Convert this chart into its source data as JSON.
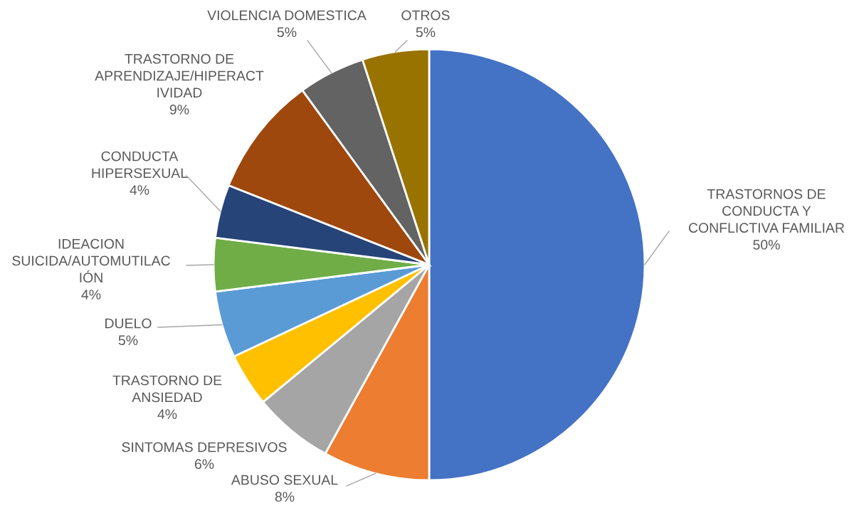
{
  "chart_data": {
    "type": "pie",
    "categories": [
      "TRASTORNOS DE\nCONDUCTA Y\nCONFLICTIVA FAMILIAR",
      "ABUSO SEXUAL",
      "SINTOMAS DEPRESIVOS",
      "TRASTORNO DE\nANSIEDAD",
      "DUELO",
      "IDEACION\nSUICIDA/AUTOMUTILAC\nIÓN",
      "CONDUCTA\nHIPERSEXUAL",
      "TRASTORNO DE\nAPRENDIZAJE/HIPERACT\nIVIDAD",
      "VIOLENCIA DOMESTICA",
      "OTROS"
    ],
    "values": [
      50,
      8,
      6,
      4,
      5,
      4,
      4,
      9,
      5,
      5
    ],
    "value_labels": [
      "50%",
      "8%",
      "6%",
      "4%",
      "5%",
      "4%",
      "4%",
      "9%",
      "5%",
      "5%"
    ],
    "colors": [
      "#4472c4",
      "#ed7d31",
      "#a5a5a5",
      "#ffc000",
      "#5b9bd5",
      "#70ad47",
      "#264478",
      "#9e480e",
      "#636363",
      "#997300"
    ],
    "legend": false
  }
}
